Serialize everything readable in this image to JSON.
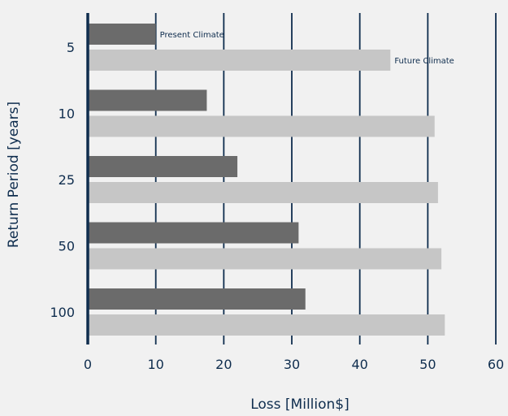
{
  "chart_data": {
    "type": "bar",
    "orientation": "horizontal",
    "categories": [
      "5",
      "10",
      "25",
      "50",
      "100"
    ],
    "series": [
      {
        "name": "Present Climate",
        "values": [
          10,
          17.5,
          22,
          31,
          32
        ],
        "color": "#6b6b6b"
      },
      {
        "name": "Future Climate",
        "values": [
          44.5,
          51,
          51.5,
          52,
          52.5
        ],
        "color": "#c6c6c6"
      }
    ],
    "xlabel": "Loss [Million$]",
    "ylabel": "Return Period [years]",
    "xlim": [
      0,
      60
    ],
    "xticks": [
      0,
      10,
      20,
      30,
      40,
      50,
      60
    ],
    "grid": "vertical",
    "legend": "inline labels at first category",
    "colors": {
      "axis": "#0f2d4e",
      "text": "#0f2d4e",
      "background": "#f1f1f1"
    }
  }
}
